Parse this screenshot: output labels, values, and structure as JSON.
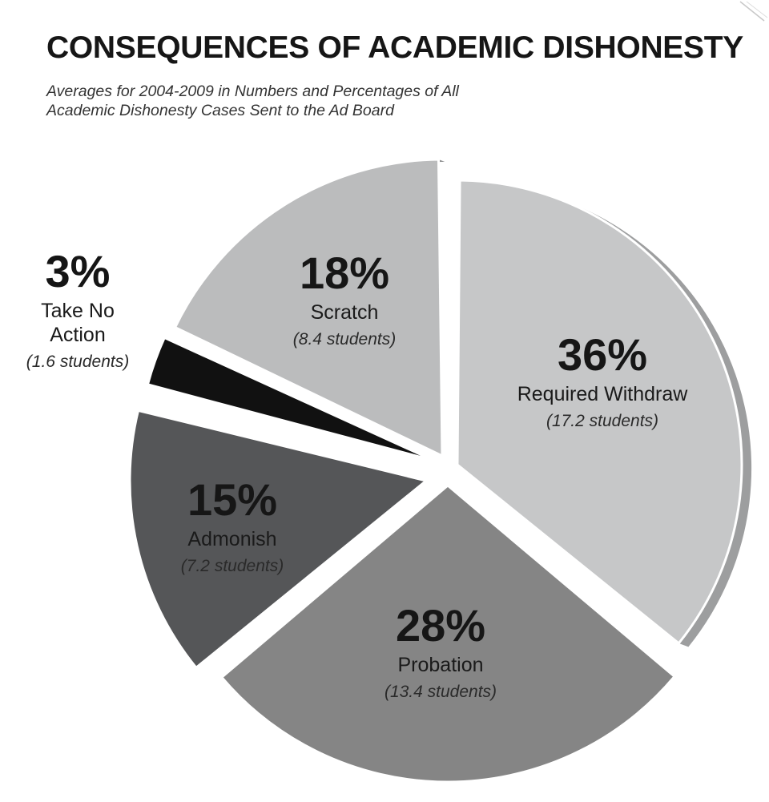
{
  "title": "CONSEQUENCES OF ACADEMIC DISHONESTY",
  "subtitle_lines": [
    "Averages for 2004-2009 in Numbers and Percentages of All",
    "Academic Dishonesty Cases Sent to the Ad Board"
  ],
  "chart_data": {
    "type": "pie",
    "title": "CONSEQUENCES OF ACADEMIC DISHONESTY",
    "subtitle": "Averages for 2004-2009 in Numbers and Percentages of All Academic Dishonesty Cases Sent to the Ad Board",
    "slices": [
      {
        "label": "Required Withdraw",
        "percent": 36,
        "percent_label": "36%",
        "count": 17.2,
        "count_label": "(17.2 students)",
        "color": "#c6c7c8",
        "side_color": "#9d9e9f",
        "exploded": false
      },
      {
        "label": "Probation",
        "percent": 28,
        "percent_label": "28%",
        "count": 13.4,
        "count_label": "(13.4 students)",
        "color": "#858585",
        "side_color": "#5f5f5f",
        "exploded": false
      },
      {
        "label": "Admonish",
        "percent": 15,
        "percent_label": "15%",
        "count": 7.2,
        "count_label": "(7.2 students)",
        "color": "#555658",
        "side_color": "#3a3b3c",
        "exploded": false
      },
      {
        "label": "Take No Action",
        "percent": 3,
        "percent_label": "3%",
        "count": 1.6,
        "count_label": "(1.6 students)",
        "color": "#111111",
        "side_color": "#000000",
        "exploded": true
      },
      {
        "label": "Scratch",
        "percent": 18,
        "percent_label": "18%",
        "count": 8.4,
        "count_label": "(8.4 students)",
        "color": "#bbbcbd",
        "side_color": "#8e8f90",
        "exploded": false
      }
    ],
    "legend": "none"
  }
}
